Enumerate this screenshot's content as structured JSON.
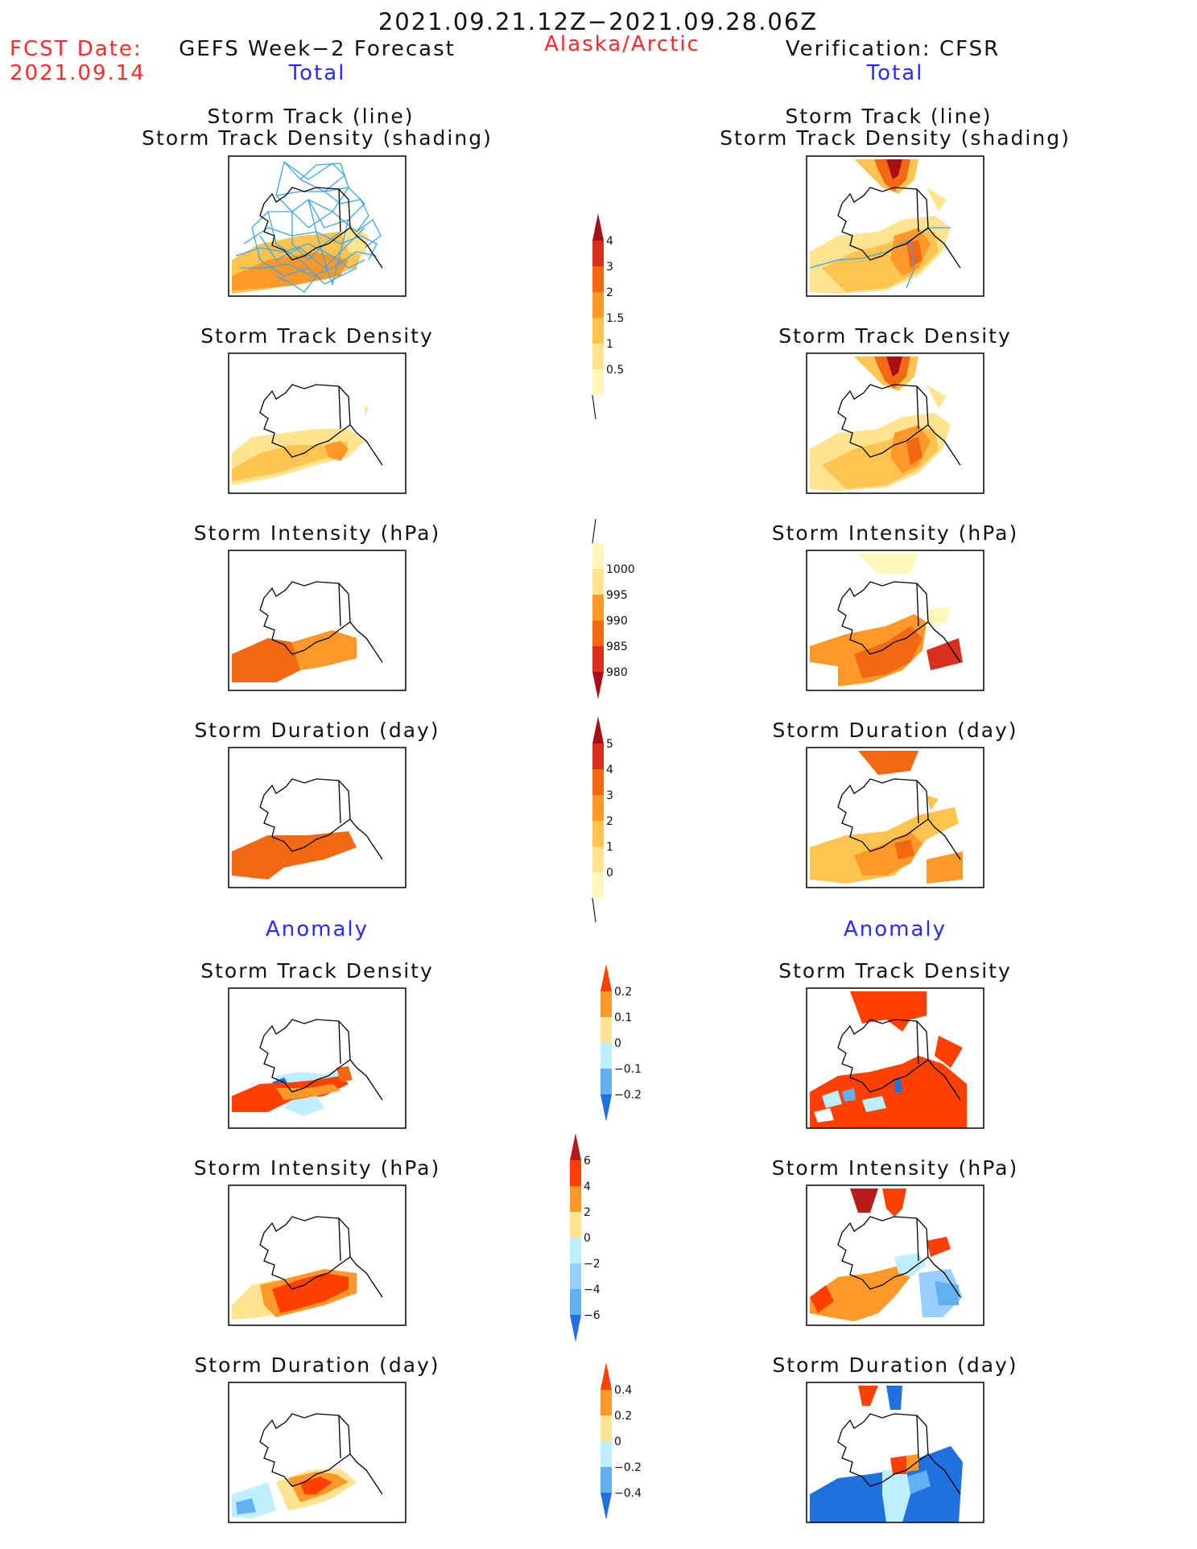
{
  "header": {
    "title": "2021.09.21.12Z−2021.09.28.06Z",
    "fcst_label": "FCST Date:",
    "fcst_date": "2021.09.14",
    "left_title": "GEFS Week−2 Forecast",
    "region": "Alaska/Arctic",
    "right_title": "Verification: CFSR"
  },
  "sections": {
    "total": "Total",
    "anomaly": "Anomaly"
  },
  "panel_titles": {
    "track_line": "Storm Track (line)",
    "track_shading": "Storm Track Density (shading)",
    "density": "Storm Track Density",
    "intensity": "Storm Intensity (hPa)",
    "duration": "Storm Duration (day)"
  },
  "colorbars": {
    "density_total": {
      "labels": [
        "4",
        "3",
        "2",
        "1.5",
        "1",
        "0.5"
      ],
      "colors": [
        "#a50f15",
        "#d7301f",
        "#f16913",
        "#fe9929",
        "#fec44f",
        "#fee391",
        "#fff7bc"
      ]
    },
    "intensity_total": {
      "labels": [
        "1000",
        "995",
        "990",
        "985",
        "980"
      ],
      "colors": [
        "#fff7bc",
        "#fee391",
        "#fe9929",
        "#f16913",
        "#d7301f",
        "#a50f15"
      ]
    },
    "duration_total": {
      "labels": [
        "5",
        "4",
        "3",
        "2",
        "1",
        "0"
      ],
      "colors": [
        "#a50f15",
        "#d7301f",
        "#f16913",
        "#fe9929",
        "#fec44f",
        "#fee391",
        "#fff7bc"
      ]
    },
    "density_anom": {
      "labels": [
        "0.2",
        "0.1",
        "0",
        "−0.1",
        "−0.2"
      ],
      "colors": [
        "#ff4000",
        "#fe9929",
        "#fee391",
        "#bfefff",
        "#63b0f0",
        "#2070e0"
      ]
    },
    "intensity_anom": {
      "labels": [
        "6",
        "4",
        "2",
        "0",
        "−2",
        "−4",
        "−6"
      ],
      "colors": [
        "#b71c1c",
        "#ff4000",
        "#fe9929",
        "#fee391",
        "#bfefff",
        "#97d0ff",
        "#63b0f0",
        "#2070e0"
      ]
    },
    "duration_anom": {
      "labels": [
        "0.4",
        "0.2",
        "0",
        "−0.2",
        "−0.4"
      ],
      "colors": [
        "#ff4000",
        "#fe9929",
        "#fee391",
        "#bfefff",
        "#63b0f0",
        "#2070e0"
      ]
    }
  },
  "colors": {
    "title_black": "#111111",
    "accent_red": "#ff2a2a",
    "accent_blue": "#2a2aff",
    "track_line": "#3aa6e8"
  }
}
